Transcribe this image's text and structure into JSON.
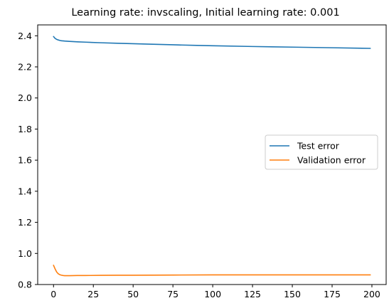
{
  "chart_data": {
    "type": "line",
    "title": "Learning rate: invscaling, Initial learning rate: 0.001",
    "xlabel": "",
    "ylabel": "",
    "xlim": [
      -9.95,
      208.95
    ],
    "ylim": [
      0.8,
      2.47
    ],
    "xticks": [
      0,
      25,
      50,
      75,
      100,
      125,
      150,
      175,
      200
    ],
    "yticks": [
      0.8,
      1.0,
      1.2,
      1.4,
      1.6,
      1.8,
      2.0,
      2.2,
      2.4
    ],
    "ytick_labels": [
      "0.8",
      "1.0",
      "1.2",
      "1.4",
      "1.6",
      "1.8",
      "2.0",
      "2.2",
      "2.4"
    ],
    "grid": false,
    "legend_position": "center-right",
    "series": [
      {
        "name": "Test error",
        "color": "#1f77b4",
        "x": [
          0,
          1,
          2,
          3,
          4,
          5,
          7,
          10,
          15,
          20,
          30,
          40,
          50,
          60,
          75,
          90,
          100,
          125,
          150,
          175,
          199
        ],
        "y": [
          2.395,
          2.383,
          2.377,
          2.373,
          2.37,
          2.368,
          2.366,
          2.364,
          2.361,
          2.359,
          2.355,
          2.352,
          2.349,
          2.346,
          2.342,
          2.338,
          2.336,
          2.331,
          2.327,
          2.323,
          2.319
        ]
      },
      {
        "name": "Validation error",
        "color": "#ff7f0e",
        "x": [
          0,
          1,
          2,
          3,
          4,
          5,
          6,
          7,
          8,
          10,
          15,
          20,
          30,
          40,
          50,
          75,
          100,
          125,
          150,
          175,
          199
        ],
        "y": [
          0.924,
          0.9,
          0.88,
          0.869,
          0.863,
          0.86,
          0.858,
          0.857,
          0.857,
          0.857,
          0.858,
          0.858,
          0.859,
          0.86,
          0.86,
          0.861,
          0.862,
          0.862,
          0.862,
          0.862,
          0.862
        ]
      }
    ]
  }
}
